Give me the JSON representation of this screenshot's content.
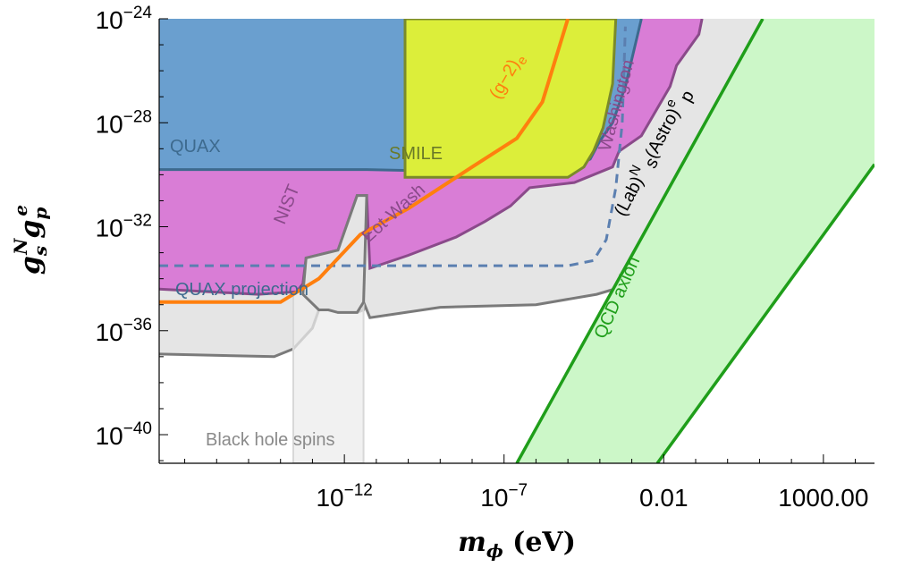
{
  "chart_data": {
    "type": "area",
    "xlabel": {
      "main": "m",
      "sub": "ϕ",
      "unit": "(eV)"
    },
    "ylabel": {
      "main": "g",
      "sub1": "s",
      "sup1": "N",
      "mid": "g",
      "sub2": "p",
      "sup2": "e"
    },
    "x_scale": "log",
    "y_scale": "log",
    "xlim_log10": [
      -17.8,
      4.6
    ],
    "ylim_log10": [
      -41.1,
      -24
    ],
    "x_ticks": [
      {
        "log10": -12,
        "label": "10",
        "exp": "−12"
      },
      {
        "log10": -7,
        "label": "10",
        "exp": "−7"
      },
      {
        "log10": -2,
        "label": "0.01",
        "exp": ""
      },
      {
        "log10": 3,
        "label": "1000.00",
        "exp": ""
      }
    ],
    "y_ticks": [
      {
        "log10": -24,
        "label": "10",
        "exp": "−24"
      },
      {
        "log10": -28,
        "label": "10",
        "exp": "−28"
      },
      {
        "log10": -32,
        "label": "10",
        "exp": "−32"
      },
      {
        "log10": -36,
        "label": "10",
        "exp": "−36"
      },
      {
        "log10": -40,
        "label": "10",
        "exp": "−40"
      }
    ],
    "region_labels": {
      "quax": "QUAX",
      "smile": "SMILE",
      "nist": "NIST",
      "eotwash": "Eot-Wash",
      "washington": "Washington",
      "g2e": "(g−2)",
      "g2e_sub": "e",
      "labastro_a": "(Lab)",
      "labastro_a_sup": "N",
      "labastro_b": "s",
      "labastro_c": "(Astro)",
      "labastro_c_sup": "e",
      "labastro_c_sub": "p",
      "quax_projection": "QUAX projection",
      "bh_spins": "Black hole spins",
      "qcd_axion": "QCD axion"
    },
    "regions": {
      "lab_astro": {
        "color": "#e5e5e5",
        "edge": "#7a7a7a",
        "boundary": [
          [
            -17.8,
            -36.9
          ],
          [
            -14.2,
            -37
          ],
          [
            -13.6,
            -36.7
          ],
          [
            -13,
            -35.9
          ],
          [
            -12.8,
            -35.2
          ],
          [
            -12.5,
            -35.2
          ],
          [
            -12.2,
            -35.3
          ],
          [
            -11.6,
            -35.3
          ],
          [
            -11.4,
            -35.2
          ],
          [
            -11.4,
            -34.9
          ],
          [
            -11.2,
            -35.5
          ],
          [
            -9,
            -35.1
          ],
          [
            -6,
            -35
          ],
          [
            -4.1,
            -34.6
          ],
          [
            -3,
            -34.2
          ],
          [
            -2.6,
            -33.8
          ],
          [
            -2.4,
            -33.3
          ],
          [
            -1.8,
            -33.1
          ],
          [
            -1.5,
            -32.8
          ],
          [
            -1.2,
            -32.4
          ],
          [
            -0.9,
            -31.6
          ],
          [
            -0.3,
            -30.8
          ],
          [
            0.2,
            -30.1
          ],
          [
            1.1,
            -29.1
          ],
          [
            1.3,
            -28.5
          ],
          [
            1.8,
            -27.5
          ],
          [
            2,
            -26.2
          ],
          [
            2.1,
            -25.2
          ],
          [
            2.2,
            -24
          ]
        ]
      },
      "bh_spins": {
        "color": "rgba(236,236,236,0.75)",
        "xrange_log10": [
          -13.6,
          -11.4
        ]
      },
      "magenta": {
        "color": "#d97dd6",
        "edge": "#8a4a8a",
        "boundary": [
          [
            -17.8,
            -34.4
          ],
          [
            -14.7,
            -34.6
          ],
          [
            -13.5,
            -34.5
          ],
          [
            -13.3,
            -34.2
          ],
          [
            -13.2,
            -33.2
          ],
          [
            -12.2,
            -32.9
          ],
          [
            -11.6,
            -30.8
          ],
          [
            -11.3,
            -30.8
          ],
          [
            -11.2,
            -33.6
          ],
          [
            -10,
            -33.1
          ],
          [
            -8.5,
            -32.4
          ],
          [
            -7.6,
            -31.8
          ],
          [
            -6.8,
            -31.2
          ],
          [
            -6.2,
            -30.5
          ],
          [
            -4.8,
            -30.3
          ],
          [
            -3.6,
            -29.7
          ],
          [
            -3.4,
            -29.1
          ],
          [
            -2.7,
            -28.5
          ],
          [
            -1.8,
            -26.6
          ],
          [
            -1.6,
            -25.8
          ],
          [
            -0.9,
            -24.6
          ],
          [
            -0.8,
            -24
          ]
        ]
      },
      "quax": {
        "color": "#6a9fcf",
        "edge": "#3d6a8e",
        "boundary": [
          [
            -17.8,
            -29.8
          ],
          [
            -11.3,
            -29.8
          ],
          [
            -11.3,
            -29.8
          ],
          [
            -7.5,
            -29.9
          ],
          [
            -5,
            -29.8
          ],
          [
            -4.3,
            -29.4
          ],
          [
            -4,
            -28.7
          ],
          [
            -3.6,
            -28
          ],
          [
            -3.2,
            -26.6
          ],
          [
            -2.7,
            -24
          ]
        ]
      },
      "smile": {
        "color": "#dcee3a",
        "edge": "#7a8a2a",
        "boundary": [
          [
            -10.1,
            -24
          ],
          [
            -10.1,
            -30.1
          ],
          [
            -5,
            -30.1
          ],
          [
            -4.5,
            -29.7
          ],
          [
            -4.2,
            -29.1
          ],
          [
            -3.9,
            -28.2
          ],
          [
            -3.6,
            -26.5
          ],
          [
            -3.5,
            -24
          ]
        ]
      },
      "qcd_axion": {
        "color": "#ccf7c8",
        "edge": "#1f9e1a",
        "lower_line": [
          [
            -6.6,
            -41.1
          ],
          [
            1.1,
            -24
          ]
        ],
        "upper_line": [
          [
            -2.2,
            -41.1
          ],
          [
            4.6,
            -29.6
          ]
        ]
      }
    },
    "lines": {
      "g2e": {
        "color": "#ff7f0e",
        "points": [
          [
            -17.8,
            -34.9
          ],
          [
            -14,
            -34.9
          ],
          [
            -12.8,
            -34
          ],
          [
            -11.5,
            -32.3
          ],
          [
            -10,
            -31.3
          ],
          [
            -8,
            -29.7
          ],
          [
            -6.6,
            -28.6
          ],
          [
            -5.8,
            -27.2
          ],
          [
            -5,
            -24
          ]
        ]
      },
      "quax_projection": {
        "color": "#5b7fb0",
        "points": [
          [
            -17.8,
            -33.5
          ],
          [
            -5,
            -33.5
          ],
          [
            -4.2,
            -33.3
          ],
          [
            -3.8,
            -32.5
          ],
          [
            -3.5,
            -30.5
          ],
          [
            -3.3,
            -28
          ],
          [
            -3.2,
            -24.3
          ]
        ]
      }
    }
  }
}
